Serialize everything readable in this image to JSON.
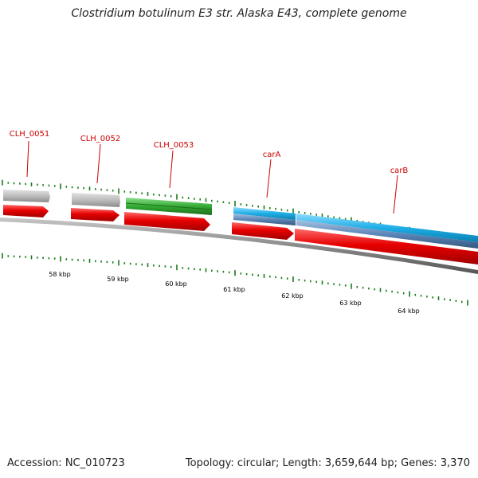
{
  "title": "Clostridium botulinum E3 str. Alaska E43, complete genome",
  "footer": {
    "accession": "Accession: NC_010723",
    "summary": "Topology: circular; Length: 3,659,644 bp; Genes: 3,370"
  },
  "colors": {
    "cds_red": "#e60000",
    "gene_gray": "#b0b0b0",
    "gene_green": "#33aa33",
    "gene_cyan": "#1eaee6",
    "gene_steelblue": "#5b86b8",
    "backbone": "#888888",
    "tick": "#1a7a1a",
    "label": "#cc0000"
  },
  "gene_labels": [
    "CLH_0051",
    "CLH_0052",
    "CLH_0053",
    "carA",
    "carB"
  ],
  "scale_labels": [
    "58 kbp",
    "59 kbp",
    "60 kbp",
    "61 kbp",
    "62 kbp",
    "63 kbp",
    "64 kbp"
  ]
}
